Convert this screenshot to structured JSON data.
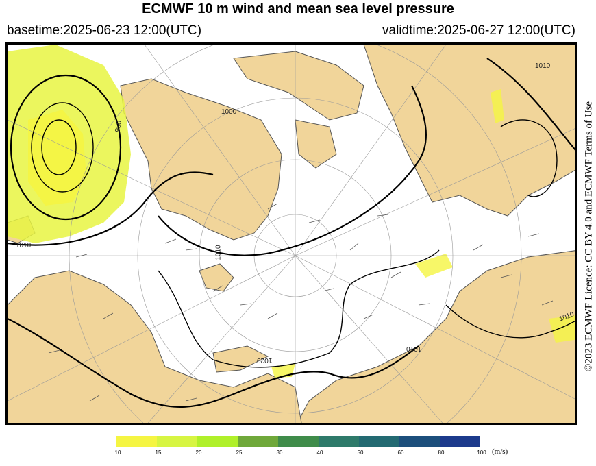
{
  "header": {
    "title": "ECMWF 10 m wind and mean sea level pressure",
    "basetime": "basetime:2025-06-23 12:00(UTC)",
    "validtime": "validtime:2025-06-27 12:00(UTC)"
  },
  "license": "©2023 ECMWF Licence: CC BY 4.0 and ECMWF Terms of Use",
  "map": {
    "isobar_labels": [
      "1010",
      "1000",
      "990",
      "1010",
      "1010",
      "1020",
      "1010",
      "1010",
      "1010"
    ],
    "colors": {
      "land": "#f1d59a",
      "sea": "#ffffff",
      "coast": "#555555",
      "isobar": "#000000"
    }
  },
  "legend": {
    "unit": "(m/s)",
    "ticks": [
      "10",
      "15",
      "20",
      "25",
      "30",
      "40",
      "50",
      "60",
      "80",
      "100"
    ],
    "colors": [
      "#f5f542",
      "#d7f542",
      "#b0f02a",
      "#6fa83a",
      "#3f8c4a",
      "#2e7a6a",
      "#236a72",
      "#1c4f7c",
      "#1c3a8c",
      "#1c2aa8"
    ]
  }
}
